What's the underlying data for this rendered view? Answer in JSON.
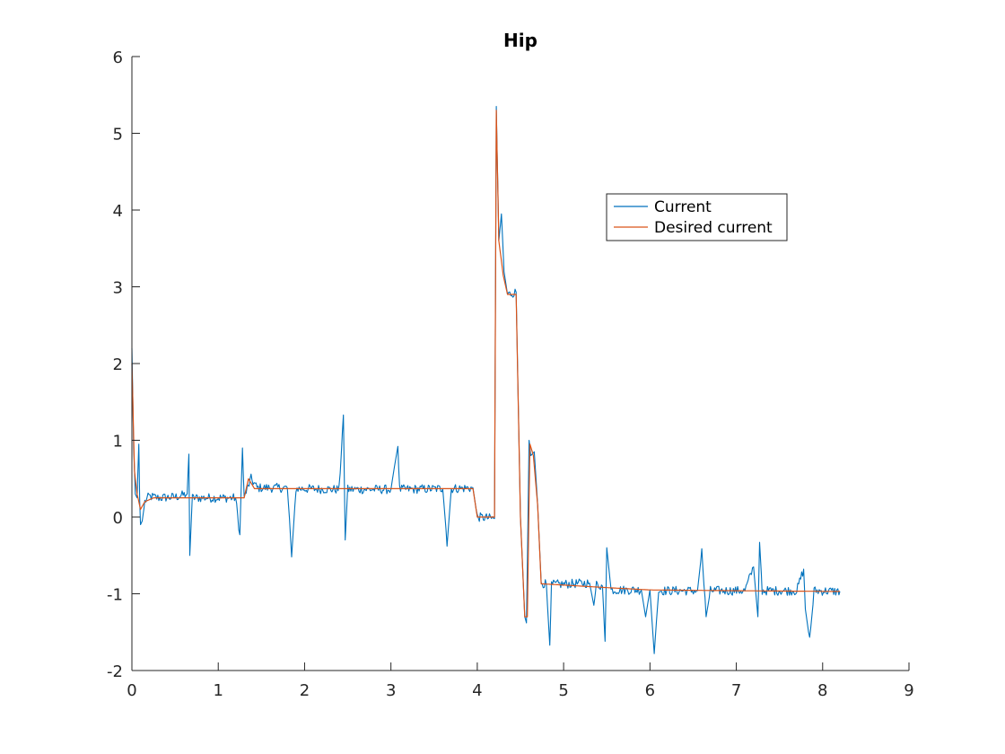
{
  "chart_data": {
    "type": "line",
    "title": "Hip",
    "xlim": [
      0,
      9
    ],
    "ylim": [
      -2,
      6
    ],
    "xticks": [
      "0",
      "1",
      "2",
      "3",
      "4",
      "5",
      "6",
      "7",
      "8",
      "9"
    ],
    "yticks": [
      "-2",
      "-1",
      "0",
      "1",
      "2",
      "3",
      "4",
      "5",
      "6"
    ],
    "grid": false,
    "legend_position": "upper-right-inside",
    "series": [
      {
        "name": "Current",
        "color": "#0072BD",
        "noisy": true,
        "points": [
          [
            0.0,
            2.2
          ],
          [
            0.02,
            0.9
          ],
          [
            0.04,
            0.3
          ],
          [
            0.06,
            0.25
          ],
          [
            0.08,
            0.95
          ],
          [
            0.09,
            0.2
          ],
          [
            0.1,
            -0.1
          ],
          [
            0.12,
            -0.05
          ],
          [
            0.15,
            0.2
          ],
          [
            0.2,
            0.27
          ],
          [
            0.3,
            0.25
          ],
          [
            0.5,
            0.26
          ],
          [
            0.64,
            0.3
          ],
          [
            0.66,
            0.82
          ],
          [
            0.67,
            -0.5
          ],
          [
            0.7,
            0.25
          ],
          [
            1.0,
            0.25
          ],
          [
            1.2,
            0.25
          ],
          [
            1.25,
            -0.23
          ],
          [
            1.28,
            0.9
          ],
          [
            1.3,
            0.25
          ],
          [
            1.38,
            0.5
          ],
          [
            1.45,
            0.38
          ],
          [
            1.8,
            0.38
          ],
          [
            1.85,
            -0.52
          ],
          [
            1.9,
            0.37
          ],
          [
            2.4,
            0.36
          ],
          [
            2.45,
            1.33
          ],
          [
            2.47,
            -0.3
          ],
          [
            2.5,
            0.36
          ],
          [
            3.0,
            0.36
          ],
          [
            3.04,
            0.65
          ],
          [
            3.08,
            0.92
          ],
          [
            3.1,
            0.36
          ],
          [
            3.6,
            0.37
          ],
          [
            3.65,
            -0.33
          ],
          [
            3.7,
            0.37
          ],
          [
            3.95,
            0.38
          ],
          [
            4.0,
            0.0
          ],
          [
            4.2,
            -0.02
          ],
          [
            4.22,
            5.35
          ],
          [
            4.25,
            3.6
          ],
          [
            4.28,
            3.95
          ],
          [
            4.31,
            3.2
          ],
          [
            4.35,
            2.9
          ],
          [
            4.45,
            2.93
          ],
          [
            4.5,
            0.0
          ],
          [
            4.55,
            -1.3
          ],
          [
            4.57,
            -1.38
          ],
          [
            4.6,
            1.0
          ],
          [
            4.62,
            0.8
          ],
          [
            4.66,
            0.85
          ],
          [
            4.7,
            0.15
          ],
          [
            4.74,
            -0.85
          ],
          [
            4.8,
            -0.88
          ],
          [
            4.84,
            -1.67
          ],
          [
            4.86,
            -0.88
          ],
          [
            5.3,
            -0.86
          ],
          [
            5.35,
            -1.15
          ],
          [
            5.38,
            -0.88
          ],
          [
            5.45,
            -0.9
          ],
          [
            5.48,
            -1.62
          ],
          [
            5.5,
            -0.4
          ],
          [
            5.55,
            -0.95
          ],
          [
            5.9,
            -0.95
          ],
          [
            5.95,
            -1.3
          ],
          [
            6.0,
            -0.95
          ],
          [
            6.05,
            -1.78
          ],
          [
            6.1,
            -0.96
          ],
          [
            6.55,
            -0.96
          ],
          [
            6.6,
            -0.45
          ],
          [
            6.65,
            -1.3
          ],
          [
            6.7,
            -0.96
          ],
          [
            7.1,
            -0.96
          ],
          [
            7.2,
            -0.65
          ],
          [
            7.25,
            -1.3
          ],
          [
            7.27,
            -0.33
          ],
          [
            7.3,
            -0.96
          ],
          [
            7.7,
            -0.96
          ],
          [
            7.78,
            -0.68
          ],
          [
            7.8,
            -1.2
          ],
          [
            7.85,
            -1.6
          ],
          [
            7.9,
            -0.96
          ],
          [
            8.2,
            -0.97
          ]
        ]
      },
      {
        "name": "Desired current",
        "color": "#D95319",
        "noisy": false,
        "points": [
          [
            0.0,
            2.0
          ],
          [
            0.03,
            0.6
          ],
          [
            0.06,
            0.3
          ],
          [
            0.1,
            0.1
          ],
          [
            0.15,
            0.2
          ],
          [
            0.25,
            0.25
          ],
          [
            1.3,
            0.25
          ],
          [
            1.35,
            0.5
          ],
          [
            1.42,
            0.37
          ],
          [
            2.0,
            0.37
          ],
          [
            3.95,
            0.37
          ],
          [
            4.0,
            0.0
          ],
          [
            4.2,
            0.0
          ],
          [
            4.22,
            5.3
          ],
          [
            4.25,
            3.6
          ],
          [
            4.3,
            3.15
          ],
          [
            4.35,
            2.9
          ],
          [
            4.45,
            2.9
          ],
          [
            4.5,
            0.0
          ],
          [
            4.55,
            -1.3
          ],
          [
            4.58,
            -1.3
          ],
          [
            4.61,
            0.95
          ],
          [
            4.65,
            0.8
          ],
          [
            4.7,
            0.15
          ],
          [
            4.74,
            -0.87
          ],
          [
            4.9,
            -0.88
          ],
          [
            5.5,
            -0.92
          ],
          [
            6.0,
            -0.95
          ],
          [
            7.0,
            -0.96
          ],
          [
            8.2,
            -0.97
          ]
        ]
      }
    ]
  }
}
